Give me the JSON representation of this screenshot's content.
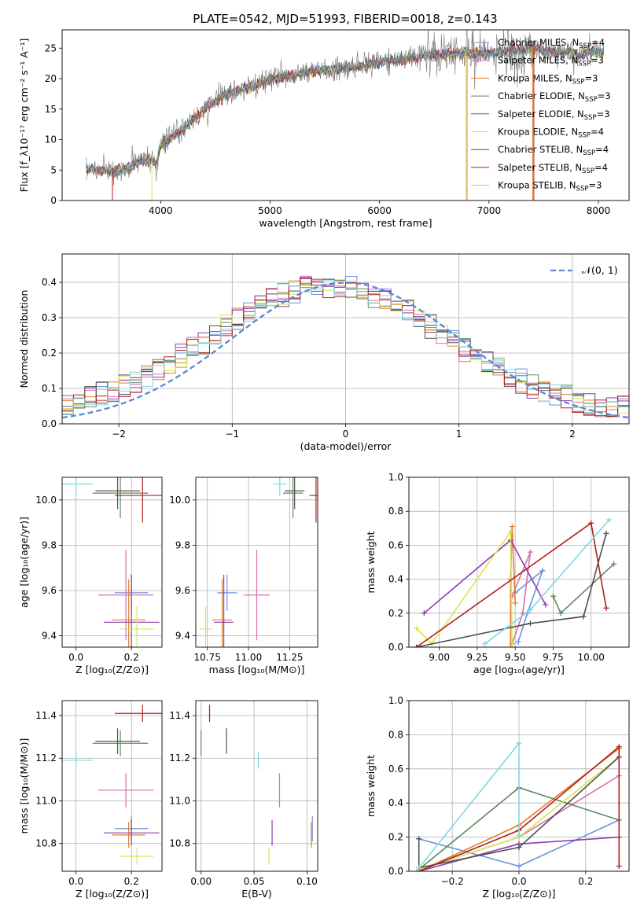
{
  "figure_title": "PLATE=0542, MJD=51993, FIBERID=0018, z=0.143",
  "colors": {
    "chabrier_miles": "#6e93dc",
    "salpeter_miles": "#d96fae",
    "kroupa_miles": "#e07f29",
    "chabrier_elodie": "#5e8a5e",
    "salpeter_elodie": "#8e3ab3",
    "kroupa_elodie": "#d4e84e",
    "chabrier_stelib": "#505050",
    "salpeter_stelib": "#b11f1f",
    "kroupa_stelib": "#7ed8e0",
    "data": "#777777"
  },
  "chart_data": [
    {
      "id": "spectrum",
      "type": "line",
      "xlabel": "wavelength [Angstrom, rest frame]",
      "ylabel": "Flux [f_λ10⁻¹⁷ erg cm⁻² s⁻¹ A⁻¹]",
      "xlim": [
        3100,
        8280
      ],
      "ylim": [
        0,
        28
      ],
      "xticks": [
        4000,
        5000,
        6000,
        7000,
        8000
      ],
      "yticks": [
        0,
        5,
        10,
        15,
        20,
        25
      ],
      "grid": false,
      "legend": "top-right",
      "continuum": [
        [
          3320,
          5.3
        ],
        [
          3450,
          5.0
        ],
        [
          3600,
          4.8
        ],
        [
          3700,
          5.4
        ],
        [
          3800,
          6.3
        ],
        [
          3900,
          6.8
        ],
        [
          3960,
          6.0
        ],
        [
          4000,
          9.2
        ],
        [
          4200,
          11.5
        ],
        [
          4400,
          15.0
        ],
        [
          4600,
          17.5
        ],
        [
          4800,
          18.5
        ],
        [
          5000,
          19.8
        ],
        [
          5200,
          20.5
        ],
        [
          5400,
          21.2
        ],
        [
          5600,
          21.5
        ],
        [
          5800,
          22.0
        ],
        [
          6000,
          22.6
        ],
        [
          6200,
          23.2
        ],
        [
          6400,
          23.7
        ],
        [
          6600,
          24.0
        ],
        [
          6800,
          24.2
        ],
        [
          7000,
          24.1
        ],
        [
          7200,
          24.5
        ],
        [
          7400,
          25.0
        ],
        [
          7600,
          24.3
        ],
        [
          7800,
          24.0
        ],
        [
          8050,
          24.5
        ]
      ],
      "series": [
        {
          "name": "Chabrier MILES",
          "nssp": "4"
        },
        {
          "name": "Salpeter MILES",
          "nssp": "3"
        },
        {
          "name": "Kroupa MILES",
          "nssp": "3"
        },
        {
          "name": "Chabrier ELODIE",
          "nssp": "3"
        },
        {
          "name": "Salpeter ELODIE",
          "nssp": "3"
        },
        {
          "name": "Kroupa ELODIE",
          "nssp": "4"
        },
        {
          "name": "Chabrier STELIB",
          "nssp": "4"
        },
        {
          "name": "Salpeter STELIB",
          "nssp": "4"
        },
        {
          "name": "Kroupa STELIB",
          "nssp": "3"
        }
      ]
    },
    {
      "id": "residuals",
      "type": "step",
      "xlabel": "(data-model)/error",
      "ylabel": "Normed distribution",
      "xlim": [
        -2.5,
        2.5
      ],
      "ylim": [
        0,
        0.48
      ],
      "xticks": [
        -2,
        -1,
        0,
        1,
        2
      ],
      "yticks": [
        0.0,
        0.1,
        0.2,
        0.3,
        0.4
      ],
      "grid": true,
      "legend": "top-right",
      "reference": {
        "name": "𝒩(0, 1)",
        "mu": 0,
        "sigma": 1
      },
      "bin_width": 0.1
    },
    {
      "id": "age_vs_Z",
      "type": "scatter",
      "xlabel": "Z [log₁₀(Z/Z⊙)]",
      "ylabel": "age  [log₁₀(age/yr)]",
      "xlim": [
        -0.05,
        0.31
      ],
      "ylim": [
        9.35,
        10.1
      ],
      "xticks": [
        0.0,
        0.2
      ],
      "yticks": [
        9.4,
        9.6,
        9.8,
        10.0
      ],
      "grid": true
    },
    {
      "id": "age_vs_mass",
      "type": "scatter",
      "xlabel": "mass [log₁₀(M/M⊙)]",
      "xlim": [
        10.68,
        11.42
      ],
      "ylim": [
        9.35,
        10.1
      ],
      "xticks": [
        10.75,
        11.0,
        11.25
      ],
      "yticks": [
        9.4,
        9.6,
        9.8,
        10.0
      ],
      "grid": true
    },
    {
      "id": "weight_vs_age",
      "type": "line",
      "xlabel": "age  [log₁₀(age/yr)]",
      "ylabel": "mass weight",
      "xlim": [
        8.8,
        10.25
      ],
      "ylim": [
        0,
        1
      ],
      "xticks": [
        9.0,
        9.25,
        9.5,
        9.75,
        10.0
      ],
      "yticks": [
        0.0,
        0.2,
        0.4,
        0.6,
        0.8,
        1.0
      ],
      "grid": true
    },
    {
      "id": "mass_vs_Z",
      "type": "scatter",
      "xlabel": "Z [log₁₀(Z/Z⊙)]",
      "ylabel": "mass [log₁₀(M/M⊙)]",
      "xlim": [
        -0.05,
        0.31
      ],
      "ylim": [
        10.67,
        11.47
      ],
      "xticks": [
        0.0,
        0.2
      ],
      "yticks": [
        10.8,
        11.0,
        11.2,
        11.4
      ],
      "grid": true
    },
    {
      "id": "mass_vs_ebv",
      "type": "scatter",
      "xlabel": "E(B-V)",
      "xlim": [
        -0.005,
        0.11
      ],
      "ylim": [
        10.67,
        11.47
      ],
      "xticks": [
        0.0,
        0.05,
        0.1
      ],
      "yticks": [
        10.8,
        11.0,
        11.2,
        11.4
      ],
      "grid": true
    },
    {
      "id": "weight_vs_Z",
      "type": "line",
      "xlabel": "Z [log₁₀(Z/Z⊙)]",
      "ylabel": "mass weight",
      "xlim": [
        -0.33,
        0.33
      ],
      "ylim": [
        0,
        1
      ],
      "xticks": [
        -0.2,
        0.0,
        0.2
      ],
      "yticks": [
        0.0,
        0.2,
        0.4,
        0.6,
        0.8,
        1.0
      ],
      "grid": true
    }
  ],
  "fits": [
    {
      "key": "chabrier_miles",
      "age": 9.59,
      "age_err": 0.08,
      "Z": 0.2,
      "Z_err": 0.06,
      "mass": 10.87,
      "mass_err": 0.06,
      "ebv": 0.105,
      "age_w": [
        [
          9.52,
          0.03
        ],
        [
          9.58,
          0.2
        ],
        [
          9.68,
          0.45
        ],
        [
          9.5,
          0.32
        ]
      ],
      "Z_w": [
        [
          -0.3,
          0.19
        ],
        [
          0.0,
          0.03
        ],
        [
          0.3,
          0.3
        ]
      ]
    },
    {
      "key": "salpeter_miles",
      "age": 9.58,
      "age_err": 0.2,
      "Z": 0.18,
      "Z_err": 0.1,
      "mass": 11.05,
      "mass_err": 0.08,
      "ebv": 0.074,
      "age_w": [
        [
          9.48,
          0.02
        ],
        [
          9.55,
          0.2
        ],
        [
          9.6,
          0.56
        ],
        [
          9.48,
          0.3
        ]
      ],
      "Z_w": [
        [
          -0.3,
          0.01
        ],
        [
          0.0,
          0.2
        ],
        [
          0.3,
          0.56
        ]
      ]
    },
    {
      "key": "kroupa_miles",
      "age": 9.47,
      "age_err": 0.18,
      "Z": 0.19,
      "Z_err": 0.06,
      "mass": 10.84,
      "mass_err": 0.06,
      "ebv": 0.104,
      "age_w": [
        [
          9.47,
          0.0
        ],
        [
          9.47,
          0.4
        ],
        [
          9.48,
          0.71
        ],
        [
          9.5,
          0.26
        ]
      ],
      "Z_w": [
        [
          -0.3,
          0.0
        ],
        [
          0.0,
          0.27
        ],
        [
          0.3,
          0.72
        ]
      ]
    },
    {
      "key": "chabrier_elodie",
      "age": 10.03,
      "age_err": 0.11,
      "Z": 0.16,
      "Z_err": 0.1,
      "mass": 11.27,
      "mass_err": 0.06,
      "ebv": 0.0,
      "age_w": [
        [
          9.75,
          0.3
        ],
        [
          9.8,
          0.2
        ],
        [
          10.15,
          0.49
        ]
      ],
      "Z_w": [
        [
          -0.3,
          0.01
        ],
        [
          0.0,
          0.49
        ],
        [
          0.3,
          0.3
        ]
      ]
    },
    {
      "key": "salpeter_elodie",
      "age": 9.46,
      "age_err": 0.21,
      "Z": 0.2,
      "Z_err": 0.1,
      "mass": 10.85,
      "mass_err": 0.06,
      "ebv": 0.067,
      "age_w": [
        [
          8.9,
          0.2
        ],
        [
          9.47,
          0.63
        ],
        [
          9.7,
          0.25
        ]
      ],
      "Z_w": [
        [
          -0.3,
          0.0
        ],
        [
          0.0,
          0.16
        ],
        [
          0.3,
          0.2
        ]
      ]
    },
    {
      "key": "kroupa_elodie",
      "age": 9.43,
      "age_err": 0.1,
      "Z": 0.22,
      "Z_err": 0.06,
      "mass": 10.74,
      "mass_err": 0.04,
      "ebv": 0.064,
      "age_w": [
        [
          8.85,
          0.11
        ],
        [
          8.95,
          0.02
        ],
        [
          9.47,
          0.68
        ],
        [
          9.48,
          0.0
        ]
      ],
      "Z_w": [
        [
          -0.3,
          0.01
        ],
        [
          0.0,
          0.2
        ],
        [
          0.3,
          0.67
        ]
      ]
    },
    {
      "key": "chabrier_stelib",
      "age": 10.04,
      "age_err": 0.08,
      "Z": 0.15,
      "Z_err": 0.08,
      "mass": 11.28,
      "mass_err": 0.06,
      "ebv": 0.024,
      "age_w": [
        [
          8.85,
          0.0
        ],
        [
          9.6,
          0.14
        ],
        [
          9.95,
          0.18
        ],
        [
          10.1,
          0.67
        ]
      ],
      "Z_w": [
        [
          -0.3,
          0.19
        ],
        [
          -0.3,
          0.02
        ],
        [
          0.0,
          0.14
        ],
        [
          0.3,
          0.67
        ]
      ]
    },
    {
      "key": "salpeter_stelib",
      "age": 10.02,
      "age_err": 0.12,
      "Z": 0.24,
      "Z_err": 0.1,
      "mass": 11.41,
      "mass_err": 0.04,
      "ebv": 0.008,
      "age_w": [
        [
          8.85,
          0.0
        ],
        [
          10.0,
          0.73
        ],
        [
          10.1,
          0.23
        ]
      ],
      "Z_w": [
        [
          -0.3,
          0.0
        ],
        [
          0.0,
          0.24
        ],
        [
          0.3,
          0.73
        ],
        [
          0.3,
          0.03
        ]
      ]
    },
    {
      "key": "kroupa_stelib",
      "age": 10.07,
      "age_err": 0.05,
      "Z": 0.0,
      "Z_err": 0.06,
      "mass": 11.19,
      "mass_err": 0.04,
      "ebv": 0.054,
      "age_w": [
        [
          9.3,
          0.02
        ],
        [
          9.6,
          0.22
        ],
        [
          10.12,
          0.75
        ]
      ],
      "Z_w": [
        [
          -0.3,
          0.02
        ],
        [
          0.0,
          0.75
        ],
        [
          0.0,
          0.21
        ]
      ]
    }
  ]
}
